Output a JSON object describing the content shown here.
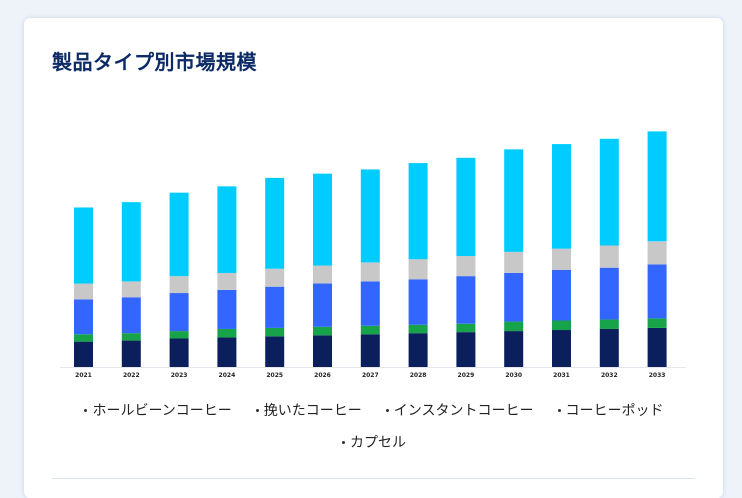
{
  "card": {
    "title": "製品タイプ別市場規模"
  },
  "chart_data": {
    "type": "bar",
    "stacked": true,
    "title": "製品タイプ別市場規模",
    "categories": [
      "2021",
      "2022",
      "2023",
      "2024",
      "2025",
      "2026",
      "2027",
      "2028",
      "2029",
      "2030",
      "2031",
      "2032",
      "2033"
    ],
    "series": [
      {
        "name": "カプセル",
        "color": "#0a1f5c",
        "values": [
          24,
          25,
          27,
          28,
          29,
          30,
          31,
          32,
          33,
          34,
          35,
          36,
          37
        ]
      },
      {
        "name": "コーヒーポッド",
        "color": "#16a34a",
        "values": [
          7,
          7,
          7,
          8,
          8,
          8,
          8,
          8,
          8,
          9,
          9,
          9,
          9
        ]
      },
      {
        "name": "インスタントコーヒー",
        "color": "#3366ff",
        "values": [
          33,
          34,
          36,
          37,
          39,
          41,
          42,
          43,
          45,
          46,
          48,
          49,
          51
        ]
      },
      {
        "name": "挽いたコーヒー",
        "color": "#c8c8c8",
        "values": [
          15,
          15,
          16,
          16,
          17,
          17,
          18,
          19,
          19,
          20,
          20,
          21,
          22
        ]
      },
      {
        "name": "ホールビーンコーヒー",
        "color": "#00ccff",
        "values": [
          72,
          75,
          79,
          82,
          86,
          87,
          88,
          91,
          93,
          97,
          99,
          101,
          104
        ]
      }
    ],
    "legend_order": [
      "ホールビーンコーヒー",
      "挽いたコーヒー",
      "インスタントコーヒー",
      "コーヒーポッド",
      "カプセル"
    ],
    "ylim": [
      0,
      230
    ],
    "legend_position": "bottom",
    "grid": false
  }
}
